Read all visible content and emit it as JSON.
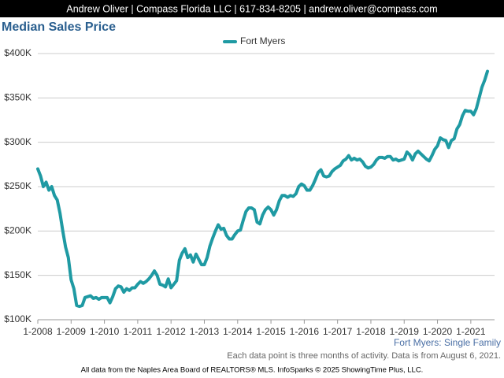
{
  "header": "Andrew Oliver | Compass Florida LLC | 617-834-8205 | andrew.oliver@compass.com",
  "chart_data": {
    "type": "line",
    "title": "Median Sales Price",
    "subtitle": "Fort Myers: Single Family",
    "note": "Each data point is three months of activity. Data is from August 6, 2021.",
    "categories": [
      "1-2008",
      null,
      null,
      null,
      null,
      null,
      null,
      null,
      null,
      null,
      null,
      null,
      "1-2009",
      null,
      null,
      null,
      null,
      null,
      null,
      null,
      null,
      null,
      null,
      null,
      "1-2010",
      null,
      null,
      null,
      null,
      null,
      null,
      null,
      null,
      null,
      null,
      null,
      "1-2011",
      null,
      null,
      null,
      null,
      null,
      null,
      null,
      null,
      null,
      null,
      null,
      "1-2012",
      null,
      null,
      null,
      null,
      null,
      null,
      null,
      null,
      null,
      null,
      null,
      "1-2013",
      null,
      null,
      null,
      null,
      null,
      null,
      null,
      null,
      null,
      null,
      null,
      "1-2014",
      null,
      null,
      null,
      null,
      null,
      null,
      null,
      null,
      null,
      null,
      null,
      "1-2015",
      null,
      null,
      null,
      null,
      null,
      null,
      null,
      null,
      null,
      null,
      null,
      "1-2016",
      null,
      null,
      null,
      null,
      null,
      null,
      null,
      null,
      null,
      null,
      null,
      "1-2017",
      null,
      null,
      null,
      null,
      null,
      null,
      null,
      null,
      null,
      null,
      null,
      "1-2018",
      null,
      null,
      null,
      null,
      null,
      null,
      null,
      null,
      null,
      null,
      null,
      "1-2019",
      null,
      null,
      null,
      null,
      null,
      null,
      null,
      null,
      null,
      null,
      null,
      "1-2020",
      null,
      null,
      null,
      null,
      null,
      null,
      null,
      null,
      null,
      null,
      null,
      "1-2021",
      null,
      null,
      null,
      null,
      null,
      null
    ],
    "series": [
      {
        "name": "Fort Myers",
        "color": "#1f9aa3",
        "values": [
          270,
          262,
          250,
          255,
          246,
          250,
          240,
          235,
          220,
          200,
          182,
          170,
          145,
          135,
          116,
          115,
          116,
          125,
          126,
          127,
          124,
          125,
          123,
          125,
          125,
          125,
          119,
          126,
          135,
          138,
          137,
          131,
          135,
          133,
          136,
          136,
          140,
          143,
          141,
          143,
          146,
          150,
          155,
          150,
          140,
          139,
          137,
          146,
          136,
          140,
          144,
          167,
          175,
          180,
          170,
          173,
          165,
          174,
          168,
          162,
          162,
          170,
          183,
          192,
          200,
          207,
          202,
          203,
          195,
          191,
          191,
          196,
          200,
          201,
          212,
          222,
          226,
          226,
          224,
          210,
          208,
          218,
          224,
          227,
          224,
          218,
          224,
          234,
          240,
          240,
          238,
          240,
          239,
          242,
          250,
          253,
          251,
          246,
          246,
          251,
          258,
          266,
          269,
          262,
          261,
          262,
          267,
          270,
          272,
          274,
          279,
          281,
          285,
          280,
          282,
          280,
          281,
          278,
          273,
          271,
          272,
          275,
          280,
          283,
          283,
          282,
          284,
          284,
          280,
          281,
          279,
          280,
          281,
          289,
          286,
          280,
          287,
          290,
          287,
          284,
          281,
          279,
          285,
          292,
          296,
          305,
          303,
          302,
          294,
          302,
          304,
          315,
          320,
          330,
          336,
          335,
          335,
          331,
          338,
          350,
          362,
          370,
          380
        ]
      }
    ],
    "ylim": [
      100,
      400
    ],
    "yticks": [
      {
        "value": 100,
        "label": "$100K"
      },
      {
        "value": 150,
        "label": "$150K"
      },
      {
        "value": 200,
        "label": "$200K"
      },
      {
        "value": 250,
        "label": "$250K"
      },
      {
        "value": 300,
        "label": "$300K"
      },
      {
        "value": 350,
        "label": "$350K"
      },
      {
        "value": 400,
        "label": "$400K"
      }
    ],
    "grid": true
  },
  "footer": "All data from the Naples Area Board of REALTORS® MLS. InfoSparks © 2025 ShowingTime Plus, LLC."
}
